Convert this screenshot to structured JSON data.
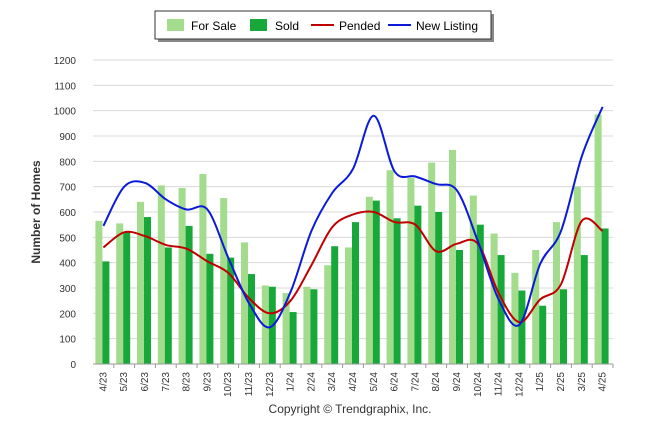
{
  "chart_data": {
    "type": "bar",
    "ylabel": "Number of Homes",
    "ylim": [
      0,
      1200
    ],
    "yticks": [
      0,
      100,
      200,
      300,
      400,
      500,
      600,
      700,
      800,
      900,
      1000,
      1100,
      1200
    ],
    "grid": "horizontal",
    "legend_position": "top-center",
    "categories": [
      "4/23",
      "5/23",
      "6/23",
      "7/23",
      "8/23",
      "9/23",
      "10/23",
      "11/23",
      "12/23",
      "1/24",
      "2/24",
      "3/24",
      "4/24",
      "5/24",
      "6/24",
      "7/24",
      "8/24",
      "9/24",
      "10/24",
      "11/24",
      "12/24",
      "1/25",
      "2/25",
      "3/25",
      "4/25"
    ],
    "series": [
      {
        "name": "For Sale",
        "type": "bar",
        "color": "#a2dc8c",
        "values": [
          565,
          555,
          640,
          705,
          695,
          750,
          655,
          480,
          310,
          280,
          305,
          390,
          460,
          660,
          765,
          735,
          795,
          845,
          665,
          515,
          360,
          450,
          560,
          700,
          985
        ]
      },
      {
        "name": "Sold",
        "type": "bar",
        "color": "#18a83a",
        "values": [
          405,
          520,
          580,
          460,
          545,
          435,
          420,
          355,
          305,
          205,
          295,
          465,
          560,
          645,
          575,
          625,
          600,
          450,
          550,
          430,
          290,
          230,
          295,
          430,
          535
        ]
      },
      {
        "name": "Pended",
        "type": "line",
        "color": "#c00000",
        "values": [
          460,
          520,
          505,
          470,
          455,
          405,
          360,
          260,
          200,
          250,
          390,
          540,
          590,
          600,
          560,
          550,
          445,
          475,
          475,
          280,
          165,
          255,
          315,
          565,
          525
        ]
      },
      {
        "name": "New Listing",
        "type": "line",
        "color": "#0a1ad8",
        "values": [
          545,
          700,
          715,
          650,
          610,
          610,
          420,
          240,
          145,
          285,
          525,
          675,
          770,
          980,
          760,
          740,
          710,
          685,
          485,
          255,
          155,
          395,
          525,
          820,
          1015
        ]
      }
    ],
    "credit": "Copyright © Trendgraphix, Inc."
  }
}
